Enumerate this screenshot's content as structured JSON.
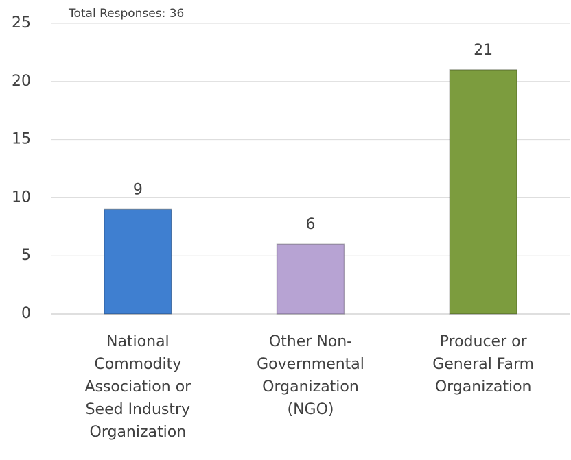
{
  "chart_data": {
    "type": "bar",
    "annotation": "Total Responses: 36",
    "categories": [
      "National\nCommodity\nAssociation or\nSeed Industry\nOrganization",
      "Other Non-\nGovernmental\nOrganization\n(NGO)",
      "Producer or\nGeneral Farm\nOrganization"
    ],
    "values": [
      9,
      6,
      21
    ],
    "colors": [
      "#3f7fd0",
      "#b7a3d3",
      "#7c9c3e"
    ],
    "ylim": [
      0,
      25
    ],
    "yticks": [
      0,
      5,
      10,
      15,
      20,
      25
    ],
    "grid": true
  }
}
